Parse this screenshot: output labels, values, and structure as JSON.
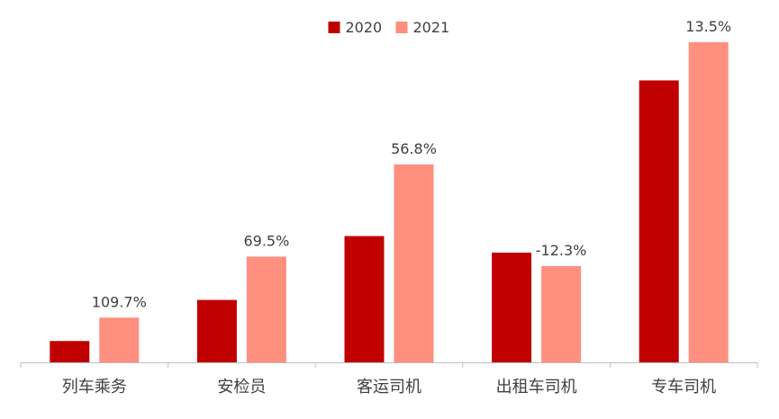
{
  "chart_data": {
    "type": "bar",
    "categories": [
      "列车乘务",
      "安检员",
      "客运司机",
      "出租车司机",
      "专车司机"
    ],
    "series": [
      {
        "name": "2020",
        "values": [
          1.06,
          3.1,
          6.27,
          5.45,
          14.0
        ],
        "color": "#C00000"
      },
      {
        "name": "2021",
        "values": [
          2.22,
          5.25,
          9.83,
          4.78,
          15.9
        ],
        "color": "#FF8F7E"
      }
    ],
    "data_labels": [
      "109.7%",
      "69.5%",
      "56.8%",
      "-12.3%",
      "13.5%"
    ],
    "title": "",
    "xlabel": "",
    "ylabel": "",
    "ylim": [
      0,
      17.1
    ],
    "grid": false,
    "y_axis_visible": false,
    "legend_position": "top-center"
  }
}
